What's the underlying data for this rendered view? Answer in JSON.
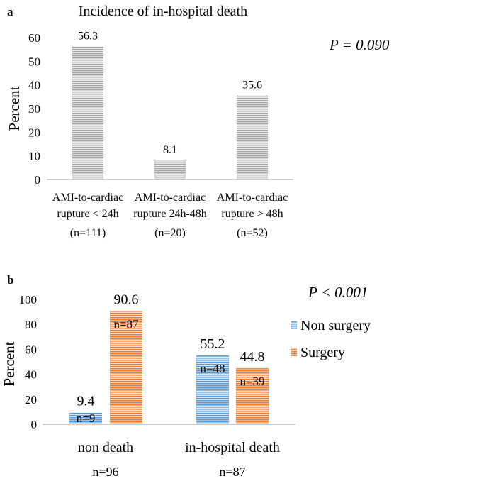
{
  "chart_data": [
    {
      "panel_label": "a",
      "type": "bar",
      "title": "Incidence of in-hospital death",
      "ylabel": "Percent",
      "xlabel": "",
      "ylim": [
        0,
        60
      ],
      "yticks": [
        "0",
        "10",
        "20",
        "30",
        "40",
        "50",
        "60"
      ],
      "categories": [
        {
          "line1": "AMI-to-cardiac",
          "line2": "rupture < 24h",
          "n": "(n=111)"
        },
        {
          "line1": "AMI-to-cardiac",
          "line2": "rupture  24h-48h",
          "n": "(n=20)"
        },
        {
          "line1": "AMI-to-cardiac",
          "line2": "rupture  > 48h",
          "n": "(n=52)"
        }
      ],
      "values": [
        56.3,
        8.1,
        35.6
      ],
      "value_labels": [
        "56.3",
        "8.1",
        "35.6"
      ],
      "annotation": "P = 0.090",
      "color": "#a6a6a6"
    },
    {
      "panel_label": "b",
      "type": "bar",
      "title": "",
      "ylabel": "Percent",
      "ylim": [
        0,
        100
      ],
      "yticks": [
        "0",
        "20",
        "40",
        "60",
        "80",
        "100"
      ],
      "categories": [
        {
          "label": "non death",
          "n": "n=96"
        },
        {
          "label": "in-hospital death",
          "n": "n=87"
        }
      ],
      "series": [
        {
          "name": "Non surgery",
          "color": "#5b9bd5",
          "values": [
            9.4,
            55.2
          ],
          "value_labels": [
            "9.4",
            "55.2"
          ],
          "n_labels": [
            "n=9",
            "n=48"
          ]
        },
        {
          "name": "Surgery",
          "color": "#ed7d31",
          "values": [
            90.6,
            44.8
          ],
          "value_labels": [
            "90.6",
            "44.8"
          ],
          "n_labels": [
            "n=87",
            "n=39"
          ]
        }
      ],
      "legend": "right",
      "annotation": "P < 0.001"
    }
  ]
}
